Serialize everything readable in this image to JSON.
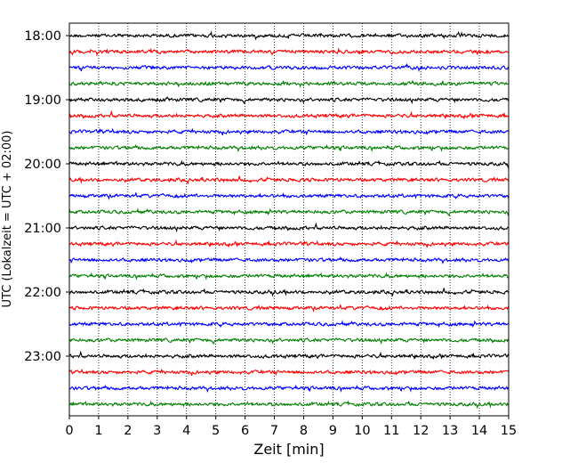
{
  "chart_data": {
    "type": "line",
    "title": "",
    "xlabel": "Zeit  [min]",
    "ylabel": "UTC (Lokalzeit = UTC + 02:00)",
    "xlim": [
      0,
      15
    ],
    "x_ticks": [
      0,
      1,
      2,
      3,
      4,
      5,
      6,
      7,
      8,
      9,
      10,
      11,
      12,
      13,
      14,
      15
    ],
    "y_tick_labels": [
      "18:00",
      "19:00",
      "20:00",
      "21:00",
      "22:00",
      "23:00"
    ],
    "grid": "vertical dotted lines at each minute",
    "trace_colors": [
      "#000000",
      "#ff0000",
      "#0000ff",
      "#008000"
    ],
    "traces": [
      "18:00",
      "18:15",
      "18:30",
      "18:45",
      "19:00",
      "19:15",
      "19:30",
      "19:45",
      "20:00",
      "20:15",
      "20:30",
      "20:45",
      "21:00",
      "21:15",
      "21:30",
      "21:45",
      "22:00",
      "22:15",
      "22:30",
      "22:45",
      "23:00",
      "23:15",
      "23:30",
      "23:45"
    ]
  }
}
